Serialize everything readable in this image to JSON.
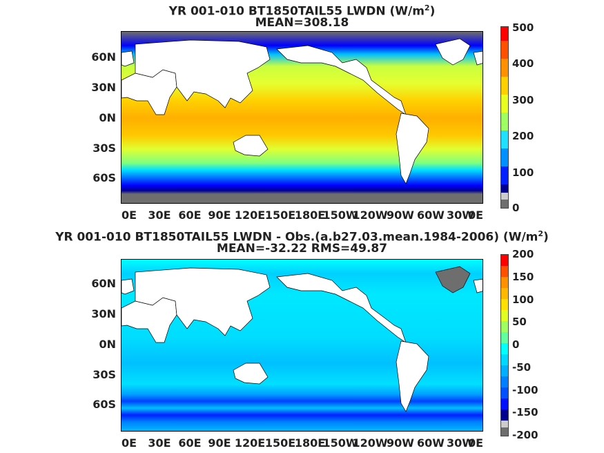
{
  "panels": [
    {
      "title_main": "YR 001-010 BT1850TAIL55 LWDN (W/m",
      "title_sup": "2",
      "title_close": ")",
      "subtitle": "MEAN=308.18",
      "lat_labels": [
        "60N",
        "30N",
        "0N",
        "30S",
        "60S"
      ],
      "lon_labels": [
        "0E",
        "30E",
        "60E",
        "90E",
        "120E",
        "150E",
        "180E",
        "150W",
        "120W",
        "90W",
        "60W",
        "30W",
        "0E"
      ],
      "colorbar_ticks": [
        "500",
        "400",
        "300",
        "200",
        "100",
        "0"
      ],
      "colorbar_range": [
        0,
        500
      ]
    },
    {
      "title_main": "YR 001-010 BT1850TAIL55 LWDN - Obs.(a.b27.03.mean.1984-2006) (W/m",
      "title_sup": "2",
      "title_close": ")",
      "subtitle": "MEAN=-32.22 RMS=49.87",
      "lat_labels": [
        "60N",
        "30N",
        "0N",
        "30S",
        "60S"
      ],
      "lon_labels": [
        "0E",
        "30E",
        "60E",
        "90E",
        "120E",
        "150E",
        "180E",
        "150W",
        "120W",
        "90W",
        "60W",
        "30W",
        "0E"
      ],
      "colorbar_ticks": [
        "200",
        "150",
        "100",
        "50",
        "0",
        "-50",
        "-100",
        "-150",
        "-200"
      ],
      "colorbar_range": [
        -200,
        200
      ]
    }
  ],
  "colors": {
    "land": "#ffffff",
    "missing": "#6e6e6e",
    "jet": [
      "#00008f",
      "#0000ff",
      "#0080ff",
      "#00ffff",
      "#80ff80",
      "#ffff00",
      "#ff8000",
      "#ff0000",
      "#800000"
    ]
  }
}
